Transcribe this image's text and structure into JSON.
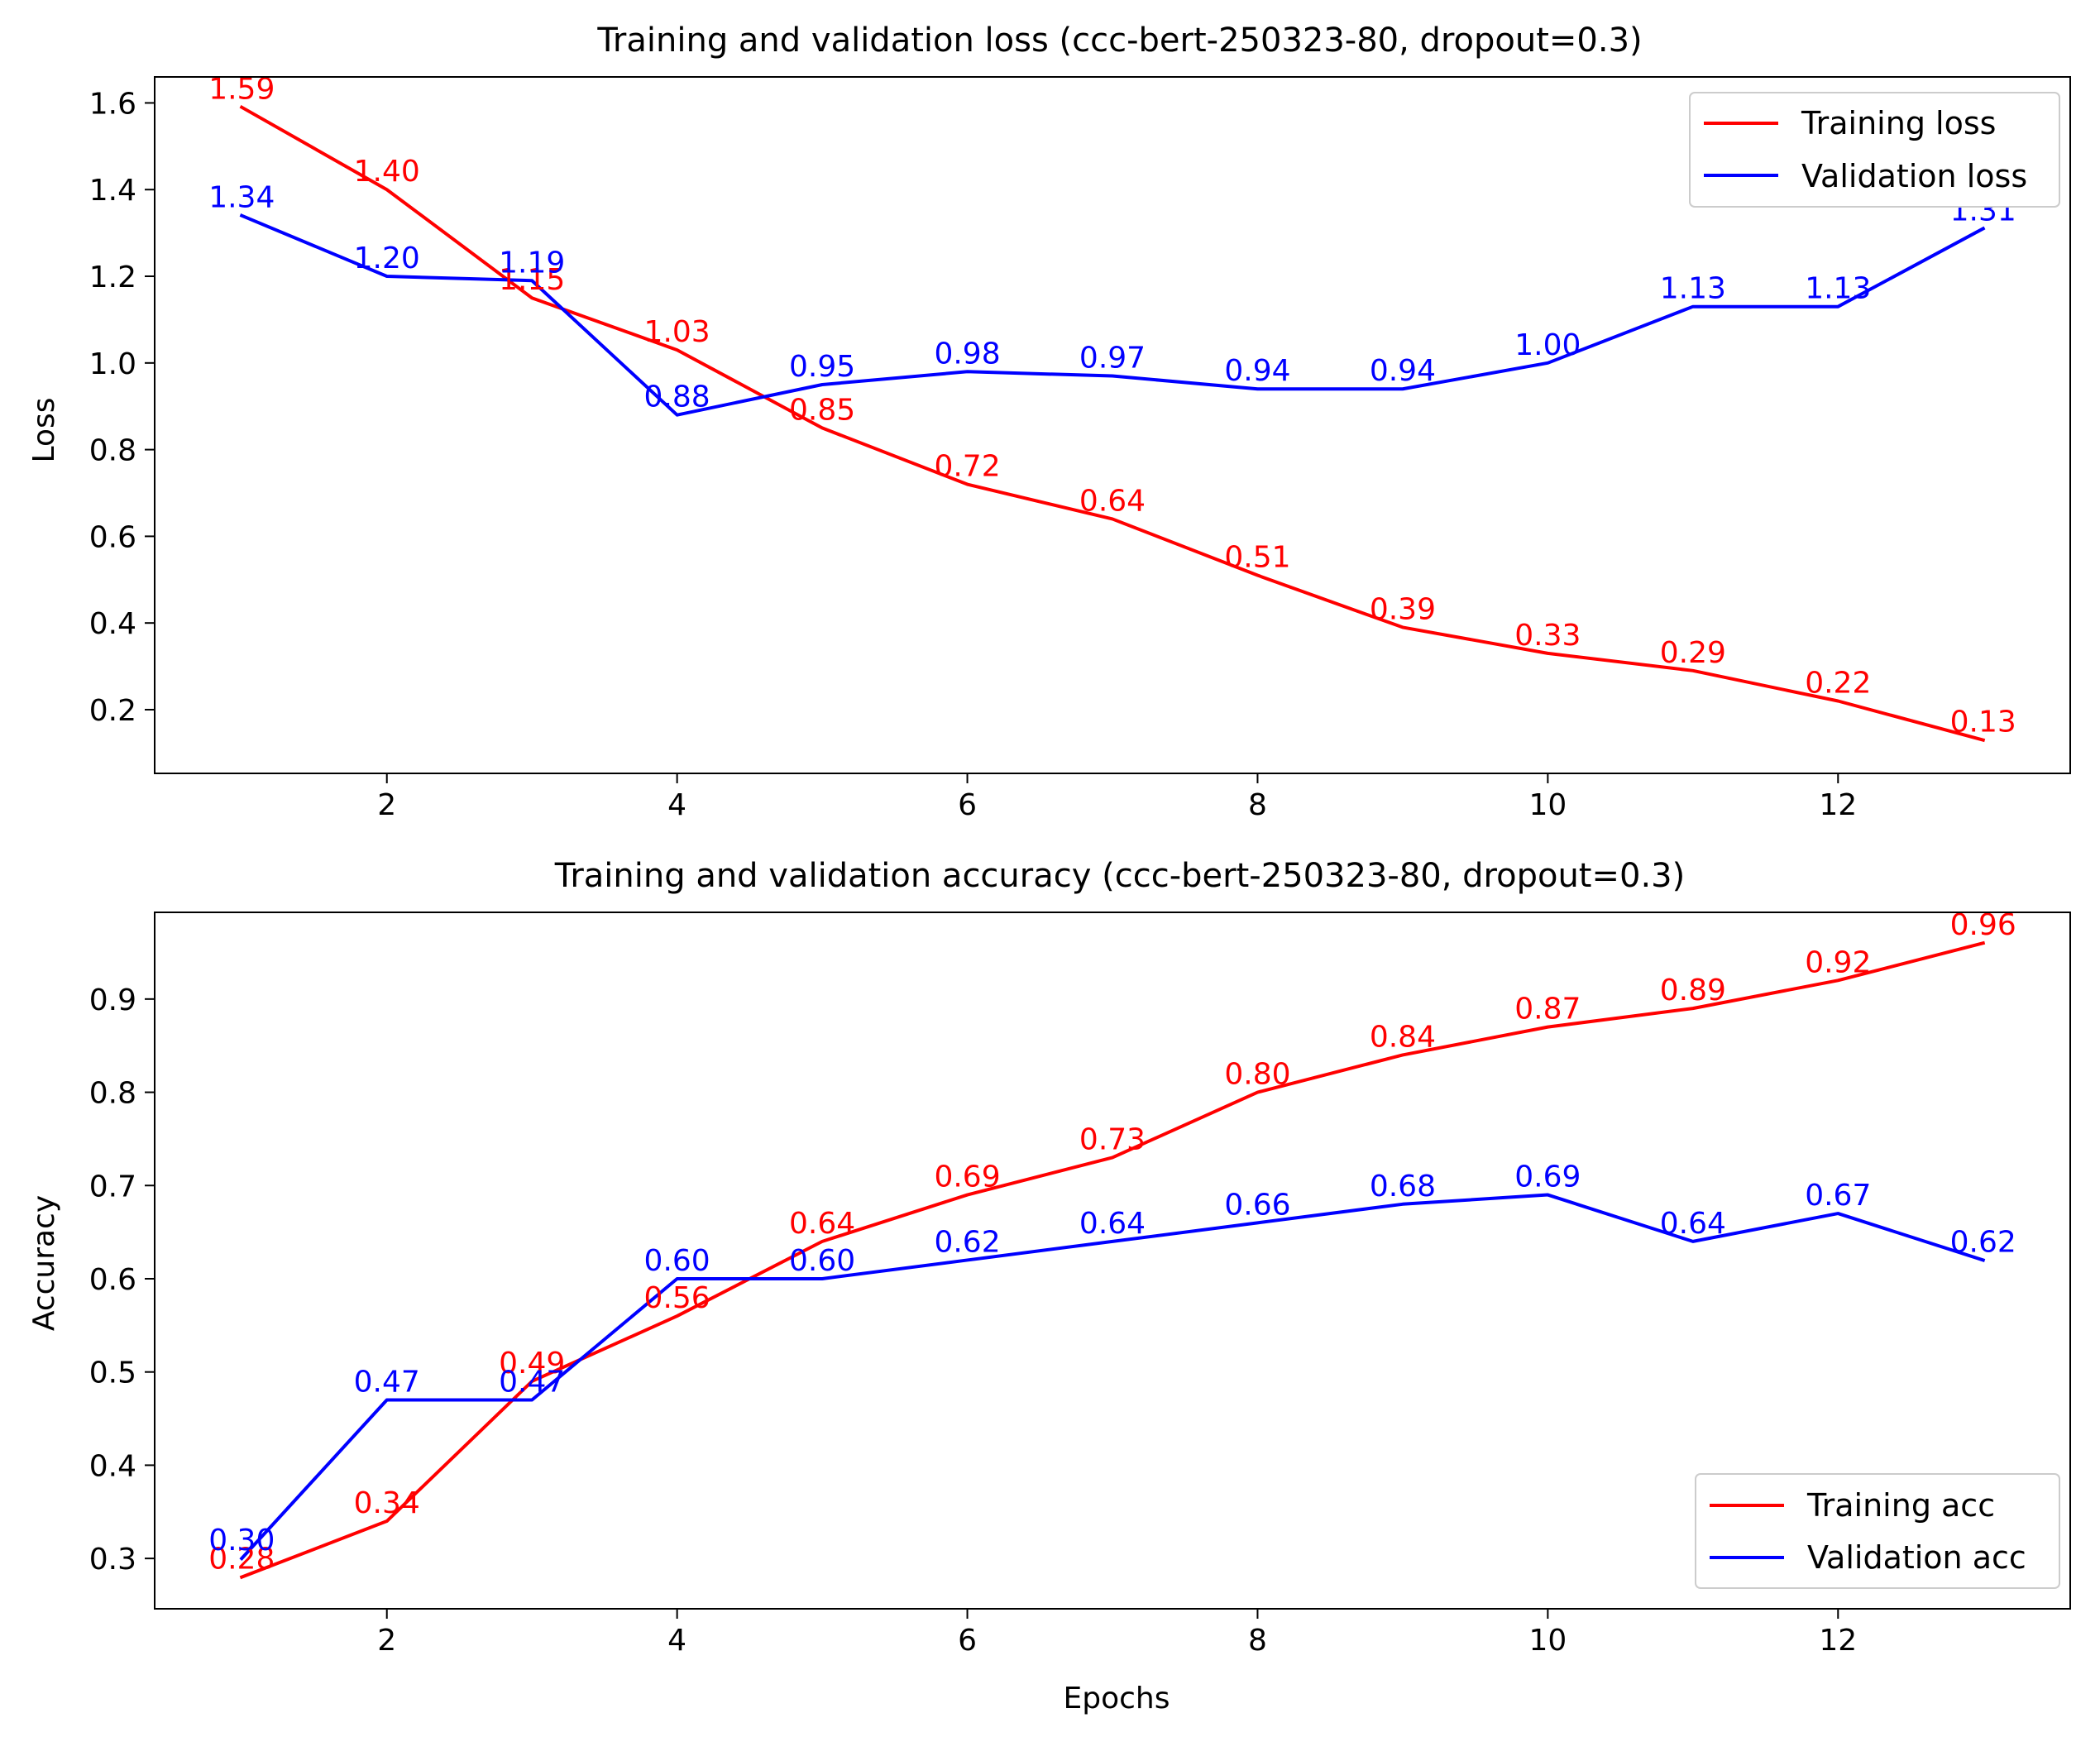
{
  "chart_data": [
    {
      "type": "line",
      "title": "Training and validation loss (ccc-bert-250323-80, dropout=0.3)",
      "xlabel": "",
      "ylabel": "Loss",
      "x": [
        1,
        2,
        3,
        4,
        5,
        6,
        7,
        8,
        9,
        10,
        11,
        12,
        13
      ],
      "xlim": [
        0.4,
        13.6
      ],
      "ylim": [
        0.053,
        1.66
      ],
      "xticks": [
        2,
        4,
        6,
        8,
        10,
        12
      ],
      "xtick_labels": [
        "2",
        "4",
        "6",
        "8",
        "10",
        "12"
      ],
      "yticks": [
        0.2,
        0.4,
        0.6,
        0.8,
        1.0,
        1.2,
        1.4,
        1.6
      ],
      "ytick_labels": [
        "0.2",
        "0.4",
        "0.6",
        "0.8",
        "1.0",
        "1.2",
        "1.4",
        "1.6"
      ],
      "legend_position": "upper right",
      "grid": false,
      "series": [
        {
          "name": "Training loss",
          "color": "#ff0000",
          "values": [
            1.59,
            1.4,
            1.15,
            1.03,
            0.85,
            0.72,
            0.64,
            0.51,
            0.39,
            0.33,
            0.29,
            0.22,
            0.13
          ],
          "labels": [
            "1.59",
            "1.40",
            "1.15",
            "1.03",
            "0.85",
            "0.72",
            "0.64",
            "0.51",
            "0.39",
            "0.33",
            "0.29",
            "0.22",
            "0.13"
          ]
        },
        {
          "name": "Validation loss",
          "color": "#0000ff",
          "values": [
            1.34,
            1.2,
            1.19,
            0.88,
            0.95,
            0.98,
            0.97,
            0.94,
            0.94,
            1.0,
            1.13,
            1.13,
            1.31
          ],
          "labels": [
            "1.34",
            "1.20",
            "1.19",
            "0.88",
            "0.95",
            "0.98",
            "0.97",
            "0.94",
            "0.94",
            "1.00",
            "1.13",
            "1.13",
            "1.31"
          ]
        }
      ]
    },
    {
      "type": "line",
      "title": "Training and validation accuracy (ccc-bert-250323-80, dropout=0.3)",
      "xlabel": "Epochs",
      "ylabel": "Accuracy",
      "x": [
        1,
        2,
        3,
        4,
        5,
        6,
        7,
        8,
        9,
        10,
        11,
        12,
        13
      ],
      "xlim": [
        0.4,
        13.6
      ],
      "ylim": [
        0.246,
        0.993
      ],
      "xticks": [
        2,
        4,
        6,
        8,
        10,
        12
      ],
      "xtick_labels": [
        "2",
        "4",
        "6",
        "8",
        "10",
        "12"
      ],
      "yticks": [
        0.3,
        0.4,
        0.5,
        0.6,
        0.7,
        0.8,
        0.9
      ],
      "ytick_labels": [
        "0.3",
        "0.4",
        "0.5",
        "0.6",
        "0.7",
        "0.8",
        "0.9"
      ],
      "legend_position": "lower right",
      "grid": false,
      "series": [
        {
          "name": "Training acc",
          "color": "#ff0000",
          "values": [
            0.28,
            0.34,
            0.49,
            0.56,
            0.64,
            0.69,
            0.73,
            0.8,
            0.84,
            0.87,
            0.89,
            0.92,
            0.96
          ],
          "labels": [
            "0.28",
            "0.34",
            "0.49",
            "0.56",
            "0.64",
            "0.69",
            "0.73",
            "0.80",
            "0.84",
            "0.87",
            "0.89",
            "0.92",
            "0.96"
          ]
        },
        {
          "name": "Validation acc",
          "color": "#0000ff",
          "values": [
            0.3,
            0.47,
            0.47,
            0.6,
            0.6,
            0.62,
            0.64,
            0.66,
            0.68,
            0.69,
            0.64,
            0.67,
            0.62
          ],
          "labels": [
            "0.30",
            "0.47",
            "0.47",
            "0.60",
            "0.60",
            "0.62",
            "0.64",
            "0.66",
            "0.68",
            "0.69",
            "0.64",
            "0.67",
            "0.62"
          ]
        }
      ]
    }
  ]
}
